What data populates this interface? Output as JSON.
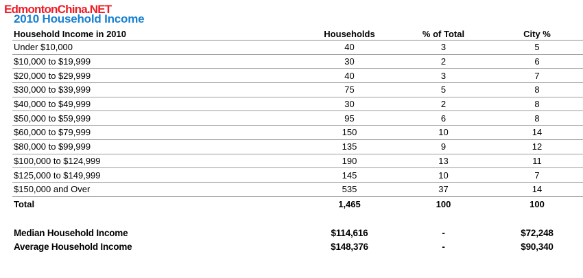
{
  "watermark": {
    "text": "EdmontonChina.NET",
    "color": "#ee1c25"
  },
  "page": {
    "title": "2010 Household Income",
    "title_color": "#1780d2"
  },
  "table": {
    "headers": {
      "label": "Household Income in 2010",
      "households": "Households",
      "pct_total": "% of Total",
      "city_pct": "City %"
    },
    "rows": [
      {
        "label": "Under $10,000",
        "households": "40",
        "pct_total": "3",
        "city_pct": "5"
      },
      {
        "label": "$10,000 to $19,999",
        "households": "30",
        "pct_total": "2",
        "city_pct": "6"
      },
      {
        "label": "$20,000 to $29,999",
        "households": "40",
        "pct_total": "3",
        "city_pct": "7"
      },
      {
        "label": "$30,000 to $39,999",
        "households": "75",
        "pct_total": "5",
        "city_pct": "8"
      },
      {
        "label": "$40,000 to $49,999",
        "households": "30",
        "pct_total": "2",
        "city_pct": "8"
      },
      {
        "label": "$50,000 to $59,999",
        "households": "95",
        "pct_total": "6",
        "city_pct": "8"
      },
      {
        "label": "$60,000 to $79,999",
        "households": "150",
        "pct_total": "10",
        "city_pct": "14"
      },
      {
        "label": "$80,000 to $99,999",
        "households": "135",
        "pct_total": "9",
        "city_pct": "12"
      },
      {
        "label": "$100,000 to $124,999",
        "households": "190",
        "pct_total": "13",
        "city_pct": "11"
      },
      {
        "label": "$125,000 to $149,999",
        "households": "145",
        "pct_total": "10",
        "city_pct": "7"
      },
      {
        "label": "$150,000 and Over",
        "households": "535",
        "pct_total": "37",
        "city_pct": "14"
      }
    ],
    "total": {
      "label": "Total",
      "households": "1,465",
      "pct_total": "100",
      "city_pct": "100"
    }
  },
  "summary": {
    "median": {
      "label": "Median Household Income",
      "households": "$114,616",
      "pct_total": "-",
      "city_pct": "$72,248"
    },
    "average": {
      "label": "Average Household Income",
      "households": "$148,376",
      "pct_total": "-",
      "city_pct": "$90,340"
    }
  }
}
